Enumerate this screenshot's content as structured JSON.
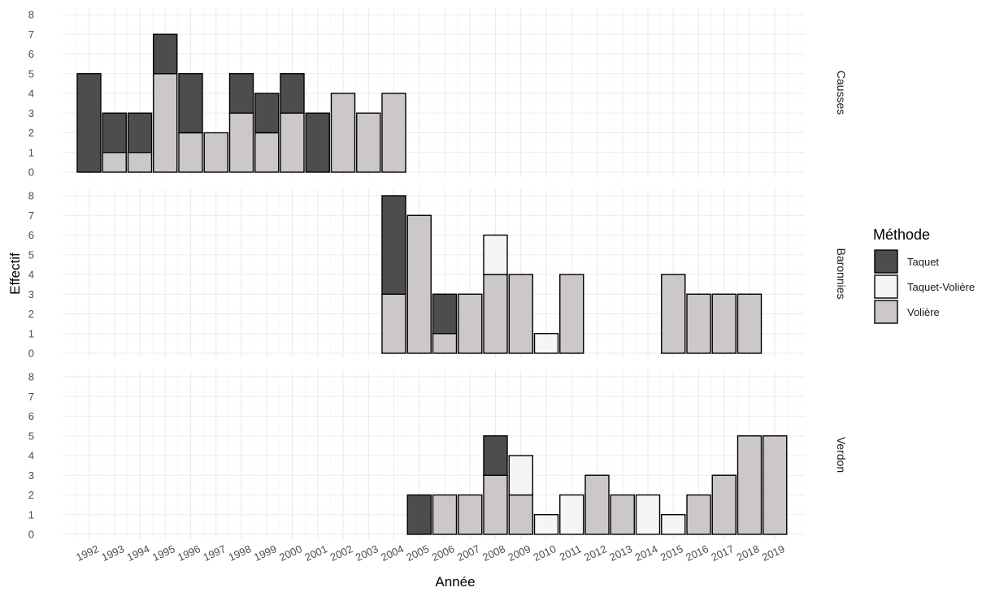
{
  "chart_data": {
    "type": "bar",
    "stacked": true,
    "facet": "rows",
    "xlabel": "Année",
    "ylabel": "Effectif",
    "ylim": [
      0,
      8
    ],
    "yticks": [
      0,
      1,
      2,
      3,
      4,
      5,
      6,
      7,
      8
    ],
    "categories": [
      "1992",
      "1993",
      "1994",
      "1995",
      "1996",
      "1997",
      "1998",
      "1999",
      "2000",
      "2001",
      "2002",
      "2003",
      "2004",
      "2005",
      "2006",
      "2007",
      "2008",
      "2009",
      "2010",
      "2011",
      "2012",
      "2013",
      "2014",
      "2015",
      "2016",
      "2017",
      "2018",
      "2019"
    ],
    "legend": {
      "title": "Méthode",
      "position": "right",
      "entries": [
        {
          "name": "Taquet",
          "color": "#4d4d4d"
        },
        {
          "name": "Taquet-Volière",
          "color": "#f5f5f5"
        },
        {
          "name": "Volière",
          "color": "#ccc8c8"
        }
      ]
    },
    "grid": true,
    "panels": [
      {
        "name": "Causses",
        "series": [
          {
            "name": "Volière",
            "values": [
              0,
              1,
              1,
              5,
              2,
              2,
              3,
              2,
              3,
              0,
              4,
              3,
              4,
              0,
              0,
              0,
              0,
              0,
              0,
              0,
              0,
              0,
              0,
              0,
              0,
              0,
              0,
              0
            ]
          },
          {
            "name": "Taquet-Volière",
            "values": [
              0,
              0,
              0,
              0,
              0,
              0,
              0,
              0,
              0,
              0,
              0,
              0,
              0,
              0,
              0,
              0,
              0,
              0,
              0,
              0,
              0,
              0,
              0,
              0,
              0,
              0,
              0,
              0
            ]
          },
          {
            "name": "Taquet",
            "values": [
              5,
              2,
              2,
              2,
              3,
              0,
              2,
              2,
              2,
              3,
              0,
              0,
              0,
              0,
              0,
              0,
              0,
              0,
              0,
              0,
              0,
              0,
              0,
              0,
              0,
              0,
              0,
              0
            ]
          }
        ]
      },
      {
        "name": "Baronnies",
        "series": [
          {
            "name": "Volière",
            "values": [
              0,
              0,
              0,
              0,
              0,
              0,
              0,
              0,
              0,
              0,
              0,
              0,
              3,
              7,
              1,
              3,
              4,
              4,
              0,
              4,
              0,
              0,
              0,
              4,
              3,
              3,
              3,
              0
            ]
          },
          {
            "name": "Taquet-Volière",
            "values": [
              0,
              0,
              0,
              0,
              0,
              0,
              0,
              0,
              0,
              0,
              0,
              0,
              0,
              0,
              0,
              0,
              2,
              0,
              1,
              0,
              0,
              0,
              0,
              0,
              0,
              0,
              0,
              0
            ]
          },
          {
            "name": "Taquet",
            "values": [
              0,
              0,
              0,
              0,
              0,
              0,
              0,
              0,
              0,
              0,
              0,
              0,
              5,
              0,
              2,
              0,
              0,
              0,
              0,
              0,
              0,
              0,
              0,
              0,
              0,
              0,
              0,
              0
            ]
          }
        ]
      },
      {
        "name": "Verdon",
        "series": [
          {
            "name": "Volière",
            "values": [
              0,
              0,
              0,
              0,
              0,
              0,
              0,
              0,
              0,
              0,
              0,
              0,
              0,
              0,
              2,
              2,
              3,
              2,
              0,
              0,
              3,
              2,
              0,
              0,
              2,
              3,
              5,
              5
            ]
          },
          {
            "name": "Taquet-Volière",
            "values": [
              0,
              0,
              0,
              0,
              0,
              0,
              0,
              0,
              0,
              0,
              0,
              0,
              0,
              0,
              0,
              0,
              0,
              2,
              1,
              2,
              0,
              0,
              2,
              1,
              0,
              0,
              0,
              0
            ]
          },
          {
            "name": "Taquet",
            "values": [
              0,
              0,
              0,
              0,
              0,
              0,
              0,
              0,
              0,
              0,
              0,
              0,
              0,
              2,
              0,
              0,
              2,
              0,
              0,
              0,
              0,
              0,
              0,
              0,
              0,
              0,
              0,
              0
            ]
          }
        ]
      }
    ]
  }
}
